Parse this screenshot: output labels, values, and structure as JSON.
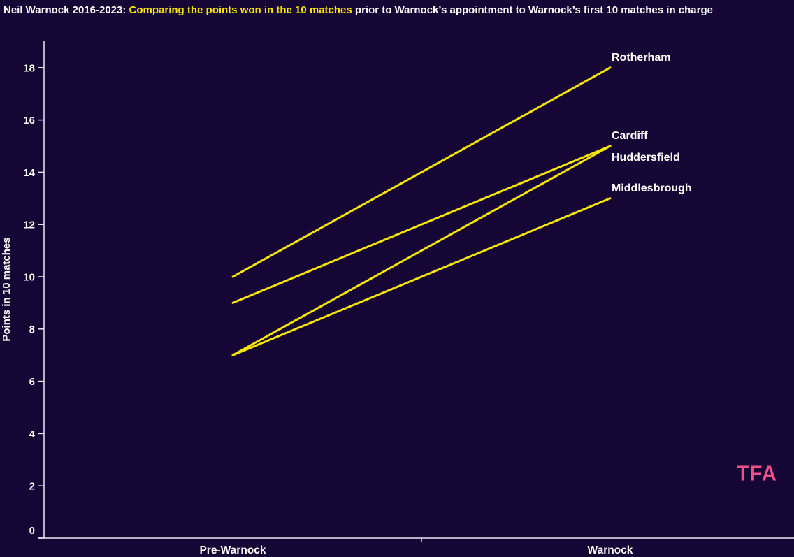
{
  "header": {
    "title_prefix": "Neil Warnock 2016-2023: ",
    "title_highlight": "Comparing the points won in the 10 matches",
    "title_suffix": " prior to Warnock’s appointment to Warnock’s first 10 matches in charge"
  },
  "logo": {
    "text": "TFA"
  },
  "colors": {
    "background": "#160636",
    "line_yellow": "#f7e600",
    "title_highlight_yellow": "#f7e600",
    "axis": "#ece7f5",
    "text": "#ffffff",
    "logo_pink": "#f0508c"
  },
  "chart_data": {
    "type": "line",
    "subtype": "slope",
    "title": "Neil Warnock 2016-2023: Comparing the points won in the 10 matches prior to Warnock’s appointment to Warnock’s first 10 matches in charge",
    "categories": [
      "Pre-Warnock",
      "Warnock"
    ],
    "series": [
      {
        "name": "Rotherham",
        "values": [
          10,
          18
        ],
        "label_position": "above"
      },
      {
        "name": "Cardiff",
        "values": [
          9,
          15
        ],
        "label_position": "above"
      },
      {
        "name": "Huddersfield",
        "values": [
          7,
          15
        ],
        "label_position": "below"
      },
      {
        "name": "Middlesbrough",
        "values": [
          7,
          13
        ],
        "label_position": "above"
      }
    ],
    "xlabel": "",
    "ylabel": "Points in 10 matches",
    "yticks": [
      0,
      2,
      4,
      6,
      8,
      10,
      12,
      14,
      16,
      18
    ],
    "ylim": [
      0,
      19
    ],
    "grid": false,
    "legend": "none",
    "line_color": "#f7e600"
  }
}
